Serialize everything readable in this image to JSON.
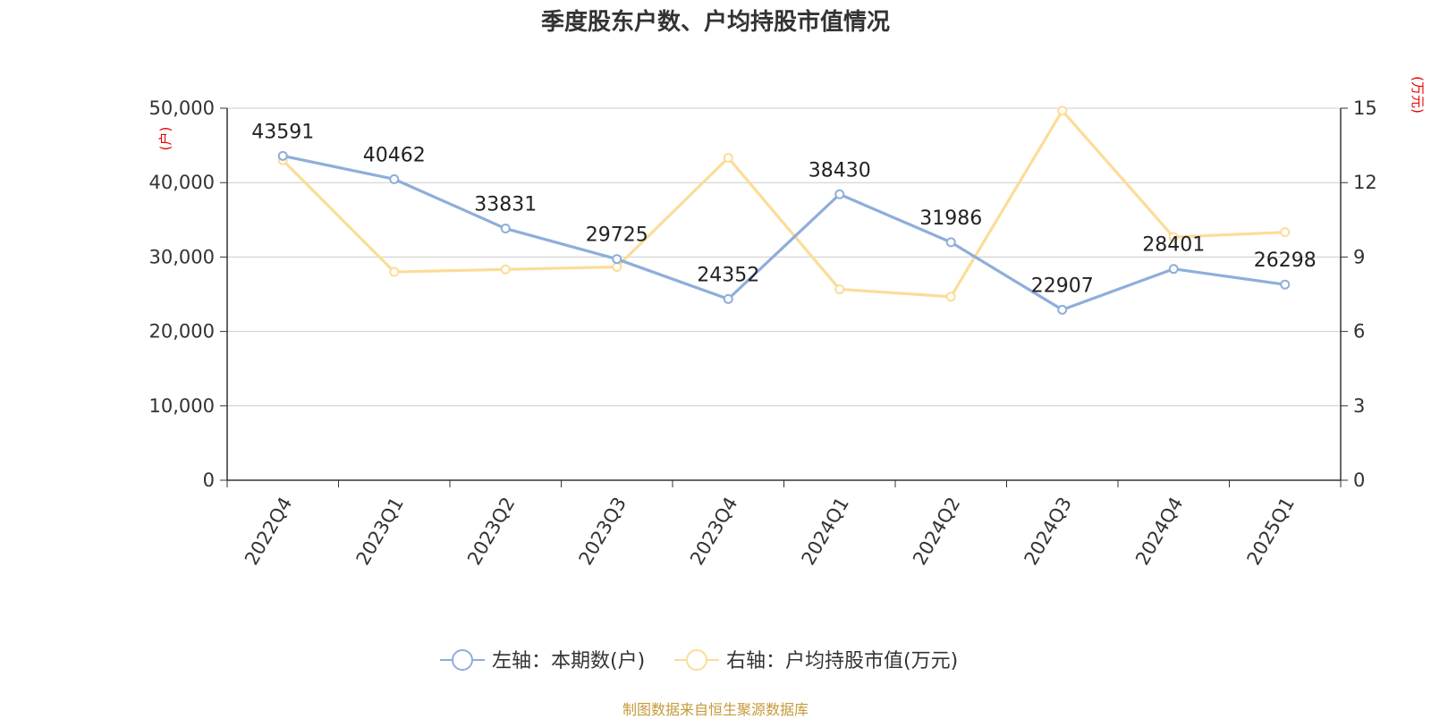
{
  "chart_data": {
    "type": "line",
    "title": "季度股东户数、户均持股市值情况",
    "categories": [
      "2022Q4",
      "2023Q1",
      "2023Q2",
      "2023Q3",
      "2023Q4",
      "2024Q1",
      "2024Q2",
      "2024Q3",
      "2024Q4",
      "2025Q1"
    ],
    "y_left": {
      "unit": "(户)",
      "min": 0,
      "max": 50000,
      "ticks": [
        0,
        10000,
        20000,
        30000,
        40000,
        50000
      ],
      "tick_labels": [
        "0",
        "10,000",
        "20,000",
        "30,000",
        "40,000",
        "50,000"
      ]
    },
    "y_right": {
      "unit": "(万元)",
      "min": 0,
      "max": 15,
      "ticks": [
        0,
        3,
        6,
        9,
        12,
        15
      ],
      "tick_labels": [
        "0",
        "3",
        "6",
        "9",
        "12",
        "15"
      ]
    },
    "series": [
      {
        "name": "左轴：本期数(户)",
        "axis": "left",
        "color": "#8eaedb",
        "values": [
          43591,
          40462,
          33831,
          29725,
          24352,
          38430,
          31986,
          22907,
          28401,
          26298
        ],
        "labels": [
          "43591",
          "40462",
          "33831",
          "29725",
          "24352",
          "38430",
          "31986",
          "22907",
          "28401",
          "26298"
        ]
      },
      {
        "name": "右轴：户均持股市值(万元)",
        "axis": "right",
        "color": "#fcdc98",
        "values": [
          12.9,
          8.4,
          8.5,
          8.6,
          13.0,
          7.7,
          7.4,
          14.9,
          9.8,
          10.0
        ]
      }
    ],
    "grid": true,
    "legend_position": "bottom"
  },
  "source": "制图数据来自恒生聚源数据库"
}
